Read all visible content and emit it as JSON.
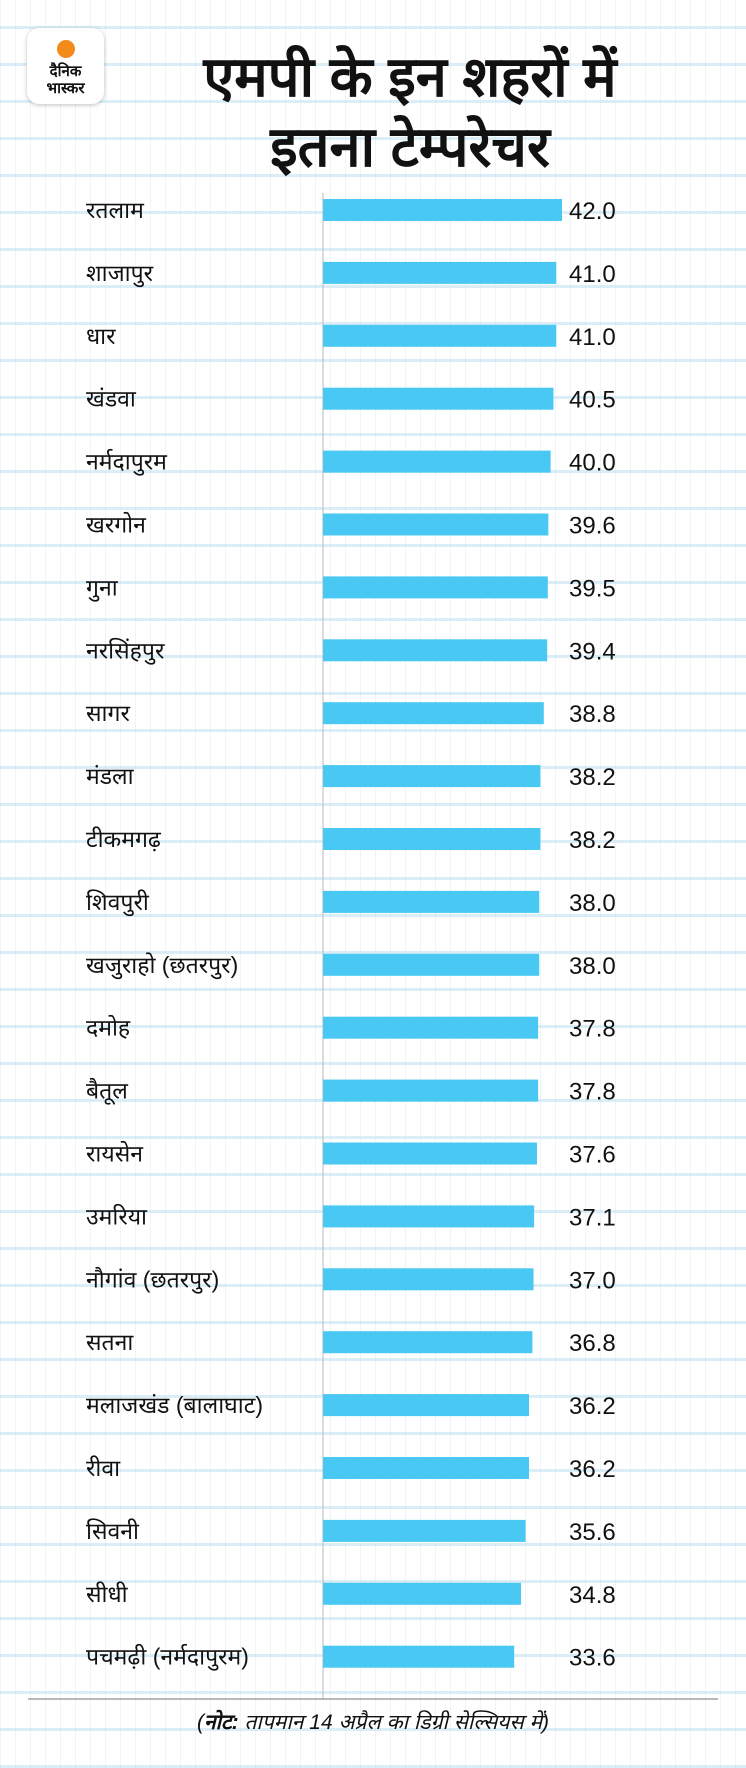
{
  "logo": {
    "line1": "दैनिक",
    "line2": "भास्कर"
  },
  "title": {
    "line1": "एमपी के इन शहरों में",
    "line2": "इतना टेम्परेचर"
  },
  "note": {
    "label": "नोट:",
    "text": "तापमान 14 अप्रैल का डिग्री सेल्सियस में)",
    "open": "("
  },
  "chart_data": {
    "type": "bar",
    "orientation": "horizontal",
    "title": "एमपी के इन शहरों में इतना टेम्परेचर",
    "unit": "°C",
    "bar_color": "#48c8f2",
    "categories": [
      "रतलाम",
      "शाजापुर",
      "धार",
      "खंडवा",
      "नर्मदापुरम",
      "खरगोन",
      "गुना",
      "नरसिंहपुर",
      "सागर",
      "मंडला",
      "टीकमगढ़",
      "शिवपुरी",
      "खजुराहो (छतरपुर)",
      "दमोह",
      "बैतूल",
      "रायसेन",
      "उमरिया",
      "नौगांव (छतरपुर)",
      "सतना",
      "मलाजखंड (बालाघाट)",
      "रीवा",
      "सिवनी",
      "सीधी",
      "पचमढ़ी (नर्मदापुरम)"
    ],
    "values": [
      42.0,
      41.0,
      41.0,
      40.5,
      40.0,
      39.6,
      39.5,
      39.4,
      38.8,
      38.2,
      38.2,
      38.0,
      38.0,
      37.8,
      37.8,
      37.6,
      37.1,
      37.0,
      36.8,
      36.2,
      36.2,
      35.6,
      34.8,
      33.6
    ],
    "labels": [
      "42.0",
      "41.0",
      "41.0",
      "40.5",
      "40.0",
      "39.6",
      "39.5",
      "39.4",
      "38.8",
      "38.2",
      "38.2",
      "38.0",
      "38.0",
      "37.8",
      "37.8",
      "37.6",
      "37.1",
      "37.0",
      "36.8",
      "36.2",
      "36.2",
      "35.6",
      "34.8",
      "33.6"
    ],
    "xlim": [
      0,
      42
    ]
  }
}
